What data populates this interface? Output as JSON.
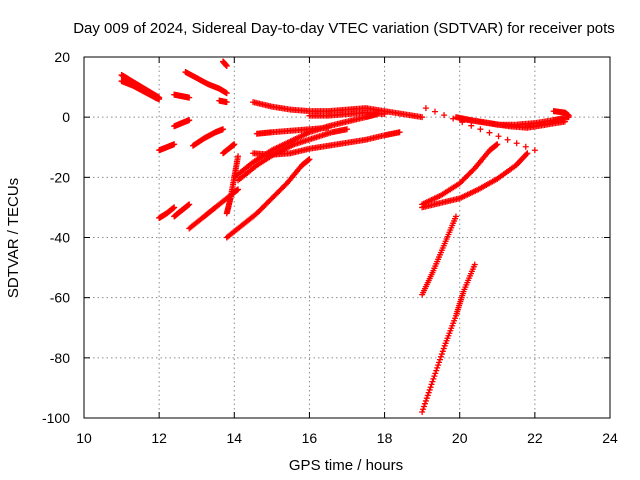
{
  "chart_data": {
    "type": "scatter",
    "title": "Day 009 of 2024, Sidereal Day-to-day VTEC variation (SDTVAR) for receiver pots",
    "xlabel": "GPS time / hours",
    "ylabel": "SDTVAR / TECUs",
    "xlim": [
      10,
      24
    ],
    "ylim": [
      -100,
      20
    ],
    "x_ticks": [
      "10",
      "12",
      "14",
      "16",
      "18",
      "20",
      "22",
      "24"
    ],
    "y_ticks": [
      "-100",
      "-80",
      "-60",
      "-40",
      "-20",
      "0",
      "20"
    ],
    "grid": true,
    "marker": "plus",
    "color": "#ff0000",
    "series": [
      {
        "points": [
          [
            11.0,
            14
          ],
          [
            11.2,
            12.5
          ],
          [
            11.4,
            11
          ],
          [
            11.6,
            9.5
          ],
          [
            11.8,
            8
          ],
          [
            12.0,
            6.5
          ]
        ]
      },
      {
        "points": [
          [
            11.0,
            12
          ],
          [
            11.3,
            10.5
          ],
          [
            11.6,
            8.5
          ],
          [
            11.9,
            6.5
          ],
          [
            12.0,
            6
          ]
        ]
      },
      {
        "points": [
          [
            12.4,
            7.5
          ],
          [
            12.6,
            7
          ],
          [
            12.8,
            6.5
          ]
        ]
      },
      {
        "points": [
          [
            12.7,
            15
          ],
          [
            13.0,
            13
          ],
          [
            13.3,
            11
          ],
          [
            13.6,
            9.5
          ],
          [
            13.8,
            8
          ]
        ]
      },
      {
        "points": [
          [
            13.6,
            5.5
          ],
          [
            13.8,
            5
          ]
        ]
      },
      {
        "points": [
          [
            13.7,
            18.5
          ],
          [
            13.8,
            17
          ]
        ]
      },
      {
        "points": [
          [
            12.4,
            -3
          ],
          [
            12.6,
            -2
          ],
          [
            12.8,
            -1
          ]
        ]
      },
      {
        "points": [
          [
            12.0,
            -11
          ],
          [
            12.2,
            -10
          ],
          [
            12.4,
            -9
          ]
        ]
      },
      {
        "points": [
          [
            12.9,
            -9.5
          ],
          [
            13.2,
            -7
          ],
          [
            13.5,
            -5
          ],
          [
            13.7,
            -4
          ]
        ]
      },
      {
        "points": [
          [
            13.7,
            -12
          ],
          [
            13.9,
            -10
          ],
          [
            14.0,
            -9
          ]
        ]
      },
      {
        "points": [
          [
            12.0,
            -33.5
          ],
          [
            12.2,
            -32
          ],
          [
            12.4,
            -30
          ]
        ]
      },
      {
        "points": [
          [
            12.4,
            -33
          ],
          [
            12.6,
            -31
          ],
          [
            12.8,
            -29
          ]
        ]
      },
      {
        "points": [
          [
            12.8,
            -37
          ],
          [
            13.2,
            -33
          ],
          [
            13.5,
            -30
          ],
          [
            13.9,
            -26
          ],
          [
            14.1,
            -24
          ]
        ]
      },
      {
        "points": [
          [
            13.8,
            -32
          ],
          [
            13.9,
            -27
          ],
          [
            14.0,
            -20
          ],
          [
            14.1,
            -13
          ]
        ]
      },
      {
        "points": [
          [
            13.8,
            -40
          ],
          [
            14.2,
            -36
          ],
          [
            14.6,
            -32
          ],
          [
            15.0,
            -27
          ],
          [
            15.4,
            -22
          ],
          [
            15.8,
            -16
          ],
          [
            16.0,
            -14
          ]
        ]
      },
      {
        "points": [
          [
            14.0,
            -20
          ],
          [
            14.5,
            -15
          ],
          [
            15.0,
            -11
          ],
          [
            15.5,
            -8
          ],
          [
            16.0,
            -5
          ],
          [
            16.5,
            -3
          ],
          [
            17.0,
            -1.5
          ],
          [
            17.5,
            0
          ],
          [
            17.8,
            1
          ]
        ]
      },
      {
        "points": [
          [
            14.1,
            -21
          ],
          [
            14.6,
            -16
          ],
          [
            15.1,
            -12
          ],
          [
            15.6,
            -9
          ],
          [
            16.1,
            -7
          ],
          [
            16.6,
            -5
          ],
          [
            17.0,
            -4
          ]
        ]
      },
      {
        "points": [
          [
            14.5,
            -12
          ],
          [
            15.0,
            -12.5
          ],
          [
            15.5,
            -12
          ],
          [
            16.0,
            -10.5
          ],
          [
            16.5,
            -9.5
          ],
          [
            17.0,
            -8.5
          ],
          [
            17.5,
            -7.5
          ],
          [
            18.0,
            -6
          ],
          [
            18.4,
            -5
          ]
        ]
      },
      {
        "points": [
          [
            14.6,
            -5.5
          ],
          [
            15.0,
            -5
          ],
          [
            15.5,
            -4.5
          ],
          [
            16.0,
            -4
          ],
          [
            16.5,
            -3.5
          ]
        ]
      },
      {
        "points": [
          [
            14.5,
            5
          ],
          [
            15.0,
            3.5
          ],
          [
            15.5,
            2.5
          ],
          [
            16.0,
            2
          ],
          [
            16.5,
            2
          ],
          [
            17.0,
            2.5
          ],
          [
            17.5,
            3
          ],
          [
            18.0,
            2
          ],
          [
            18.5,
            1
          ],
          [
            19.0,
            0
          ]
        ]
      },
      {
        "points": [
          [
            16.0,
            0.5
          ],
          [
            16.5,
            0.5
          ],
          [
            17.0,
            1
          ],
          [
            17.5,
            1.5
          ],
          [
            18.0,
            1
          ]
        ]
      },
      {
        "points": [
          [
            19.0,
            -29
          ],
          [
            19.5,
            -26
          ],
          [
            20.0,
            -22
          ],
          [
            20.4,
            -17
          ],
          [
            20.8,
            -11
          ],
          [
            21.0,
            -9
          ]
        ]
      },
      {
        "points": [
          [
            19.0,
            -30
          ],
          [
            19.5,
            -28.5
          ],
          [
            20.0,
            -27
          ],
          [
            20.5,
            -24
          ],
          [
            21.0,
            -20.5
          ],
          [
            21.5,
            -16
          ],
          [
            21.8,
            -12
          ]
        ]
      },
      {
        "points": [
          [
            19.0,
            -59
          ],
          [
            19.3,
            -51
          ],
          [
            19.6,
            -42
          ],
          [
            19.9,
            -33
          ]
        ]
      },
      {
        "points": [
          [
            19.0,
            -98
          ],
          [
            19.3,
            -87
          ],
          [
            19.6,
            -76
          ],
          [
            19.9,
            -66
          ],
          [
            20.1,
            -58
          ],
          [
            20.4,
            -49
          ]
        ]
      },
      {
        "points": [
          [
            19.9,
            0
          ],
          [
            20.3,
            -1
          ],
          [
            20.8,
            -2
          ],
          [
            21.3,
            -3
          ],
          [
            21.8,
            -3.5
          ],
          [
            22.3,
            -2.5
          ],
          [
            22.8,
            -1.5
          ]
        ]
      },
      {
        "points": [
          [
            20.0,
            -0.5
          ],
          [
            20.5,
            -1.5
          ],
          [
            21.0,
            -2.5
          ],
          [
            21.5,
            -2.5
          ],
          [
            22.0,
            -2
          ],
          [
            22.5,
            -1
          ],
          [
            22.9,
            0
          ]
        ]
      },
      {
        "points": [
          [
            22.5,
            2
          ],
          [
            22.8,
            1.5
          ],
          [
            22.9,
            0.5
          ]
        ]
      },
      {
        "points": [
          [
            19.1,
            3
          ],
          [
            22.0,
            -11
          ]
        ]
      }
    ]
  }
}
